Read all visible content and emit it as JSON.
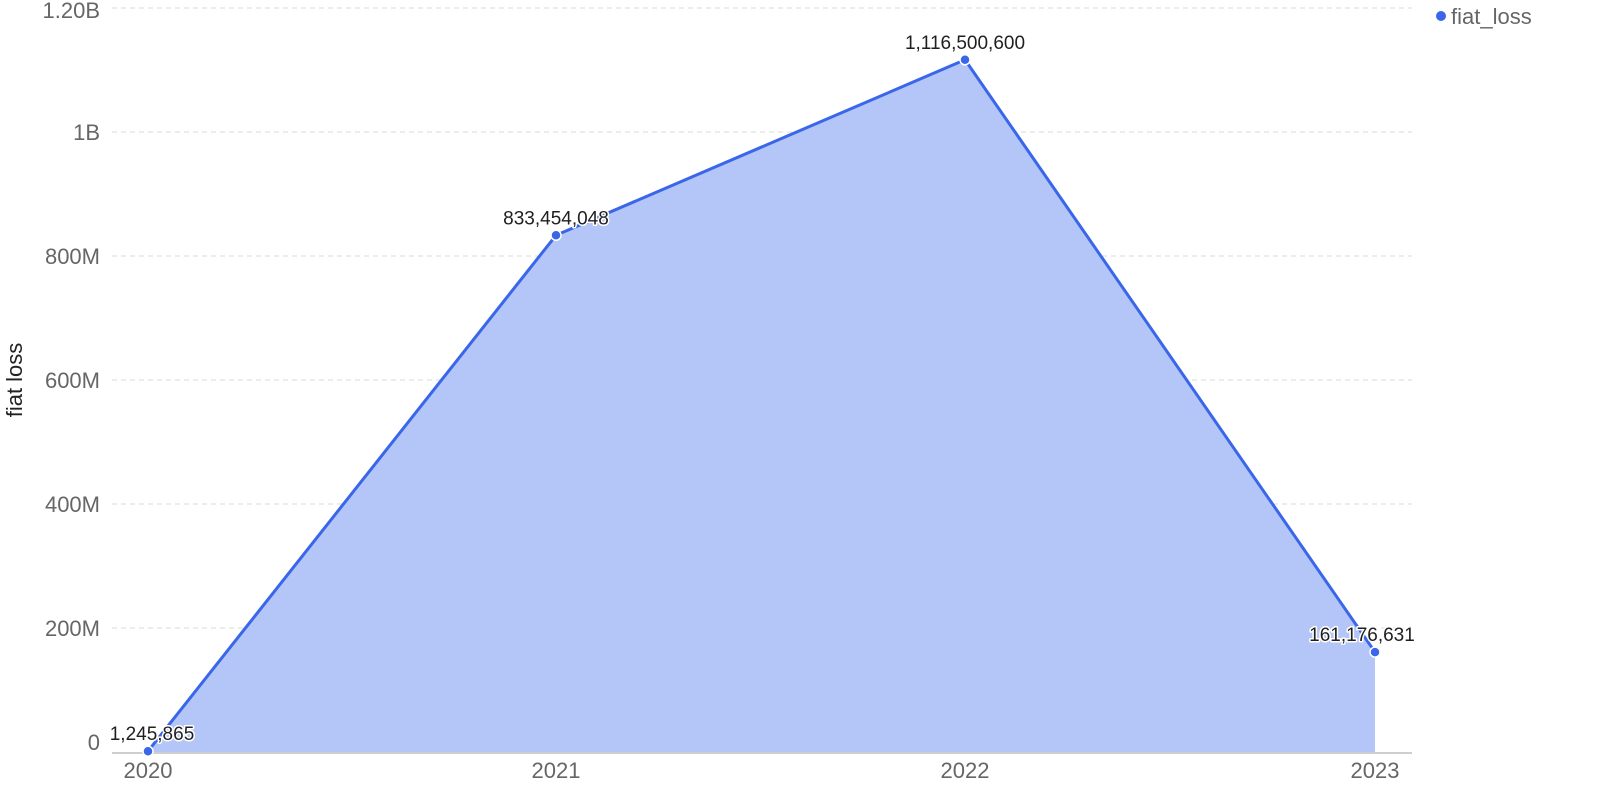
{
  "chart_data": {
    "type": "area",
    "x": [
      "2020",
      "2021",
      "2022",
      "2023"
    ],
    "series": [
      {
        "name": "fiat_loss",
        "values": [
          1245865,
          833454048,
          1116500600,
          161176631
        ],
        "labels": [
          "1,245,865",
          "833,454,048",
          "1,116,500,600",
          "161,176,631"
        ]
      }
    ],
    "ylabel": "fiat loss",
    "xlabel": "",
    "ylim": [
      0,
      1200000000
    ],
    "yticks": [
      {
        "value": 0,
        "label": "0"
      },
      {
        "value": 200000000,
        "label": "200M"
      },
      {
        "value": 400000000,
        "label": "400M"
      },
      {
        "value": 600000000,
        "label": "600M"
      },
      {
        "value": 800000000,
        "label": "800M"
      },
      {
        "value": 1000000000,
        "label": "1B"
      },
      {
        "value": 1200000000,
        "label": "1.20B"
      }
    ],
    "grid": true,
    "legend_position": "top-right",
    "colors": {
      "line": "#3a66ea",
      "area": "#b4c6f7",
      "grid": "#d9d9d9"
    }
  }
}
